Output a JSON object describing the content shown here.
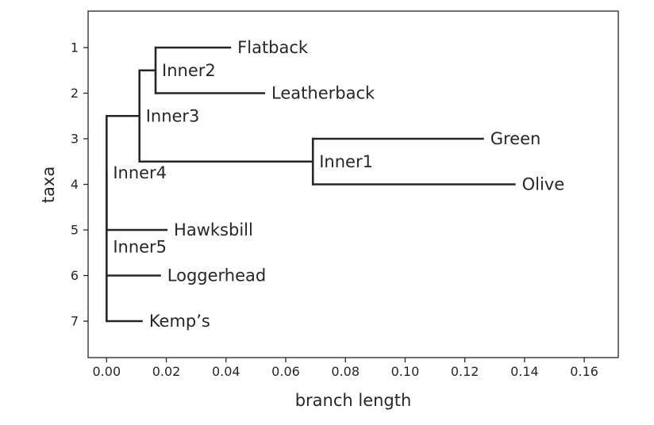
{
  "chart_data": {
    "type": "tree",
    "xlabel": "branch length",
    "ylabel": "taxa",
    "xlim": [
      -0.0062,
      0.1714
    ],
    "ylim": [
      7.8,
      0.2
    ],
    "xticks": [
      0.0,
      0.02,
      0.04,
      0.06,
      0.08,
      0.1,
      0.12,
      0.14,
      0.16
    ],
    "xtick_labels": [
      "0.00",
      "0.02",
      "0.04",
      "0.06",
      "0.08",
      "0.10",
      "0.12",
      "0.14",
      "0.16"
    ],
    "yticks": [
      1,
      2,
      3,
      4,
      5,
      6,
      7
    ],
    "ytick_labels": [
      "1",
      "2",
      "3",
      "4",
      "5",
      "6",
      "7"
    ],
    "line_color": "#262626",
    "nodes": [
      {
        "id": "Inner5",
        "label": "Inner5",
        "parent": null,
        "x": 0.0,
        "y": 5.375
      },
      {
        "id": "Inner4",
        "label": "Inner4",
        "parent": "Inner5",
        "x": 0.0,
        "y": 3.75
      },
      {
        "id": "Inner3",
        "label": "Inner3",
        "parent": "Inner4",
        "x": 0.011,
        "y": 2.5
      },
      {
        "id": "Inner2",
        "label": "Inner2",
        "parent": "Inner3",
        "x": 0.0164,
        "y": 1.5
      },
      {
        "id": "Flatback",
        "label": "Flatback",
        "parent": "Inner2",
        "x": 0.0417,
        "y": 1
      },
      {
        "id": "Leatherback",
        "label": "Leatherback",
        "parent": "Inner2",
        "x": 0.0531,
        "y": 2
      },
      {
        "id": "Inner1",
        "label": "Inner1",
        "parent": "Inner3",
        "x": 0.0691,
        "y": 3.5
      },
      {
        "id": "Green",
        "label": "Green",
        "parent": "Inner1",
        "x": 0.1264,
        "y": 3
      },
      {
        "id": "Olive",
        "label": "Olive",
        "parent": "Inner1",
        "x": 0.137,
        "y": 4
      },
      {
        "id": "Hawksbill",
        "label": "Hawksbill",
        "parent": "Inner4",
        "x": 0.0204,
        "y": 5
      },
      {
        "id": "Loggerhead",
        "label": "Loggerhead",
        "parent": "Inner5",
        "x": 0.0182,
        "y": 6
      },
      {
        "id": "Kemps",
        "label": "Kemp’s",
        "parent": "Inner5",
        "x": 0.0121,
        "y": 7
      }
    ]
  }
}
